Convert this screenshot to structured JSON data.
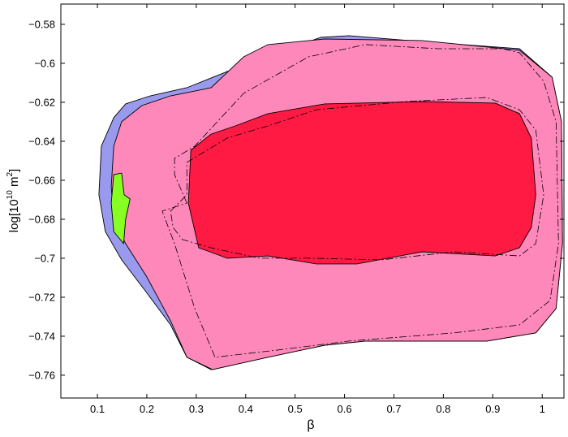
{
  "chart_data": {
    "type": "contour",
    "xlabel": "β",
    "ylabel": {
      "base": "log[10",
      "exp1": "10",
      "unit": " m",
      "exp2": "2",
      "close": "]"
    },
    "xlim": [
      0.026,
      1.044
    ],
    "ylim": [
      -0.7717,
      -0.5696
    ],
    "xticks": [
      0.1,
      0.2,
      0.3,
      0.4,
      0.5,
      0.6,
      0.7,
      0.8,
      0.9,
      1
    ],
    "yticks": [
      {
        "value": -0.58,
        "label": "−0.58"
      },
      {
        "value": -0.6,
        "label": "−0.6"
      },
      {
        "value": -0.62,
        "label": "−0.62"
      },
      {
        "value": -0.64,
        "label": "−0.64"
      },
      {
        "value": -0.66,
        "label": "−0.66"
      },
      {
        "value": -0.68,
        "label": "−0.68"
      },
      {
        "value": -0.7,
        "label": "−0.7"
      },
      {
        "value": -0.72,
        "label": "−0.72"
      },
      {
        "value": -0.74,
        "label": "−0.74"
      },
      {
        "value": -0.76,
        "label": "−0.76"
      }
    ],
    "regions": [
      {
        "color": "#9999ee",
        "x": [
          0.552,
          0.609,
          0.773,
          0.954,
          1.02,
          1.039,
          1.041,
          1.028,
          0.987,
          0.888,
          0.642,
          0.56,
          0.445,
          0.33,
          0.281,
          0.248,
          0.199,
          0.149,
          0.116,
          0.103,
          0.108,
          0.133,
          0.157,
          0.207,
          0.281,
          0.396
        ],
        "y": [
          -0.5867,
          -0.5858,
          -0.5892,
          -0.5925,
          -0.6071,
          -0.63,
          -0.6925,
          -0.7258,
          -0.7383,
          -0.7425,
          -0.7425,
          -0.7446,
          -0.7508,
          -0.7571,
          -0.7508,
          -0.7342,
          -0.7175,
          -0.7008,
          -0.6863,
          -0.6675,
          -0.6425,
          -0.6279,
          -0.6208,
          -0.6167,
          -0.6125,
          -0.6008
        ]
      },
      {
        "color": "#ff88bb",
        "x": [
          0.33,
          0.396,
          0.445,
          0.56,
          0.757,
          0.954,
          1.02,
          1.039,
          1.041,
          1.028,
          0.987,
          0.888,
          0.642,
          0.56,
          0.445,
          0.333,
          0.281,
          0.248,
          0.199,
          0.157,
          0.133,
          0.128,
          0.133,
          0.149,
          0.19,
          0.248
        ],
        "y": [
          -0.6125,
          -0.5967,
          -0.5904,
          -0.5875,
          -0.5883,
          -0.5933,
          -0.6071,
          -0.63,
          -0.6925,
          -0.7258,
          -0.7383,
          -0.7425,
          -0.7425,
          -0.7446,
          -0.7508,
          -0.7571,
          -0.7508,
          -0.7321,
          -0.7092,
          -0.6925,
          -0.68,
          -0.6633,
          -0.6425,
          -0.63,
          -0.6217,
          -0.6167
        ]
      },
      {
        "color": "#ff1a44",
        "x": [
          0.289,
          0.33,
          0.379,
          0.445,
          0.56,
          0.757,
          0.905,
          0.954,
          0.978,
          0.987,
          0.978,
          0.954,
          0.905,
          0.757,
          0.625,
          0.543,
          0.445,
          0.363,
          0.305,
          0.284
        ],
        "y": [
          -0.6446,
          -0.6363,
          -0.6321,
          -0.6258,
          -0.6208,
          -0.6196,
          -0.6204,
          -0.6258,
          -0.6383,
          -0.6675,
          -0.6842,
          -0.6946,
          -0.6988,
          -0.6967,
          -0.7029,
          -0.7029,
          -0.6988,
          -0.7,
          -0.6946,
          -0.6717
        ]
      },
      {
        "color": "#88ff22",
        "x": [
          0.133,
          0.149,
          0.154,
          0.166,
          0.157,
          0.153,
          0.133,
          0.128
        ],
        "y": [
          -0.6571,
          -0.6563,
          -0.6675,
          -0.6696,
          -0.68,
          -0.6925,
          -0.6863,
          -0.6717
        ]
      }
    ],
    "lines": [
      {
        "style": "dashed",
        "x": [
          0.281,
          0.256,
          0.256,
          0.297,
          0.396,
          0.527,
          0.642,
          0.79,
          0.921,
          0.954,
          1.003,
          1.028,
          1.033,
          1.016,
          0.954,
          0.822,
          0.609,
          0.478,
          0.338,
          0.297,
          0.256,
          0.231
        ],
        "y": [
          -0.6717,
          -0.6571,
          -0.6488,
          -0.6425,
          -0.6154,
          -0.5967,
          -0.5904,
          -0.5925,
          -0.5925,
          -0.5946,
          -0.6092,
          -0.63,
          -0.6925,
          -0.7217,
          -0.7342,
          -0.7383,
          -0.7425,
          -0.7467,
          -0.7508,
          -0.7258,
          -0.6925,
          -0.6758
        ]
      },
      {
        "style": "dashed",
        "x": [
          0.248,
          0.281,
          0.281,
          0.363,
          0.445,
          0.543,
          0.724,
          0.888,
          0.954,
          0.987,
          1.003,
          0.987,
          0.954,
          0.822,
          0.675,
          0.527,
          0.428,
          0.33,
          0.272,
          0.253
        ],
        "y": [
          -0.6758,
          -0.6675,
          -0.6508,
          -0.6383,
          -0.6321,
          -0.6238,
          -0.6196,
          -0.6175,
          -0.6238,
          -0.6342,
          -0.6675,
          -0.6925,
          -0.6988,
          -0.6967,
          -0.7008,
          -0.7,
          -0.7,
          -0.6946,
          -0.6904,
          -0.6842
        ]
      }
    ]
  }
}
